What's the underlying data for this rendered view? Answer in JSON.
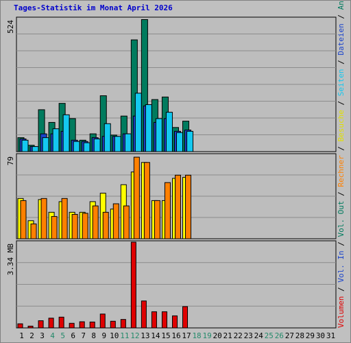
{
  "title": "Tages-Statistik im Monat April 2026",
  "colors": {
    "background": "#c0c0c0",
    "plot": "#bdbdbd",
    "grid": "#8c8c8c",
    "title": "#0000cc",
    "anfragen": "#007b5e",
    "dateien": "#1a44cc",
    "seiten": "#14c8f0",
    "besuche": "#ffff00",
    "rechner": "#ff8000",
    "volumen": "#e00000",
    "weekday_label": "#000000",
    "weekend_label": "#238a6a"
  },
  "right_legend": [
    {
      "text": "Anfragen",
      "color": "#007b5e"
    },
    {
      "text": "Dateien",
      "color": "#1a44cc"
    },
    {
      "text": "Seiten",
      "color": "#14c8f0"
    },
    {
      "text": "Besuche",
      "color": "#e0e000"
    },
    {
      "text": "Rechner",
      "color": "#ff8000"
    },
    {
      "text": "Vol. Out",
      "color": "#007b5e"
    },
    {
      "text": "Vol. In",
      "color": "#1a44cc"
    },
    {
      "text": "Volumen",
      "color": "#e00000"
    }
  ],
  "chart_data": [
    {
      "type": "bar",
      "panel": "hits",
      "ymax_label": "524",
      "ylim": [
        0,
        524
      ],
      "categories": [
        "1",
        "2",
        "3",
        "4",
        "5",
        "6",
        "7",
        "8",
        "9",
        "10",
        "11",
        "12",
        "13",
        "14",
        "15",
        "16",
        "17",
        "18",
        "19",
        "20",
        "21",
        "22",
        "23",
        "24",
        "25",
        "26",
        "27",
        "28",
        "29",
        "30",
        "31"
      ],
      "weekend_days": [
        4,
        5,
        11,
        12,
        18,
        19,
        25,
        26
      ],
      "series": [
        {
          "name": "Anfragen",
          "values": [
            55,
            25,
            165,
            115,
            190,
            130,
            45,
            70,
            220,
            65,
            140,
            440,
            520,
            205,
            215,
            95,
            120,
            null,
            null,
            null,
            null,
            null,
            null,
            null,
            null,
            null,
            null,
            null,
            null,
            null,
            null
          ]
        },
        {
          "name": "Dateien",
          "values": [
            50,
            20,
            70,
            70,
            80,
            45,
            40,
            55,
            60,
            60,
            70,
            140,
            180,
            115,
            130,
            80,
            85,
            null,
            null,
            null,
            null,
            null,
            null,
            null,
            null,
            null,
            null,
            null,
            null,
            null,
            null
          ]
        },
        {
          "name": "Seiten",
          "values": [
            45,
            20,
            55,
            90,
            145,
            40,
            35,
            50,
            110,
            60,
            70,
            230,
            185,
            130,
            155,
            75,
            80,
            null,
            null,
            null,
            null,
            null,
            null,
            null,
            null,
            null,
            null,
            null,
            null,
            null,
            null
          ]
        }
      ]
    },
    {
      "type": "bar",
      "panel": "visits",
      "ymax_label": "79",
      "ylim": [
        0,
        79
      ],
      "series": [
        {
          "name": "Besuche",
          "values": [
            38,
            17,
            37,
            25,
            35,
            25,
            25,
            35,
            43,
            28,
            51,
            63,
            72,
            36,
            36,
            57,
            58,
            null,
            null,
            null,
            null,
            null,
            null,
            null,
            null,
            null,
            null,
            null,
            null,
            null,
            null
          ]
        },
        {
          "name": "Rechner",
          "values": [
            36,
            14,
            38,
            21,
            38,
            23,
            24,
            31,
            25,
            33,
            31,
            77,
            72,
            36,
            53,
            60,
            60,
            null,
            null,
            null,
            null,
            null,
            null,
            null,
            null,
            null,
            null,
            null,
            null,
            null,
            null
          ]
        }
      ]
    },
    {
      "type": "bar",
      "panel": "volume",
      "ymax_label": "3.34 MB",
      "ylim": [
        0,
        3.34
      ],
      "series": [
        {
          "name": "Volumen",
          "values": [
            0.16,
            0.07,
            0.28,
            0.38,
            0.42,
            0.18,
            0.24,
            0.23,
            0.54,
            0.26,
            0.33,
            3.34,
            1.05,
            0.63,
            0.63,
            0.47,
            0.83,
            null,
            null,
            null,
            null,
            null,
            null,
            null,
            null,
            null,
            null,
            null,
            null,
            null,
            null
          ]
        }
      ]
    }
  ]
}
